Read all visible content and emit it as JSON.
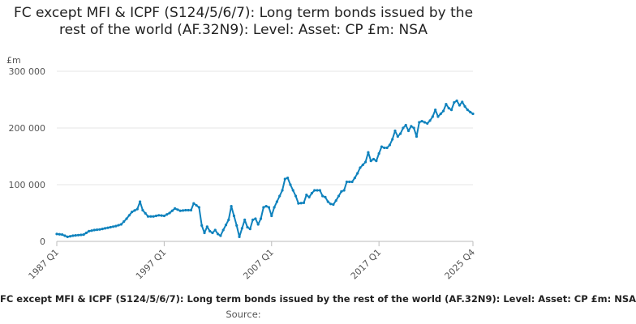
{
  "chart_data": {
    "type": "line",
    "title": "FC except MFI & ICPF (S124/5/6/7): Long term bonds issued by the rest of the world (AF.32N9): Level: Asset: CP £m: NSA",
    "ylabel": "£m",
    "xlabel": "",
    "ylim": [
      0,
      300000
    ],
    "yticks": [
      0,
      100000,
      200000,
      300000
    ],
    "ytick_labels": [
      "0",
      "100 000",
      "200 000",
      "300 000"
    ],
    "xtick_labels": [
      "1987 Q1",
      "1997 Q1",
      "2007 Q1",
      "2017 Q1",
      "2025 Q4"
    ],
    "xtick_indices": [
      0,
      40,
      80,
      120,
      155
    ],
    "grid": true,
    "legend": "bottom",
    "source_label": "Source:",
    "series": [
      {
        "name": "FC except MFI & ICPF (S124/5/6/7): Long term bonds issued by the rest of the world (AF.32N9): Level: Asset: CP £m: NSA",
        "color": "#0f82bd",
        "anchors": [
          [
            0,
            13000
          ],
          [
            2,
            12000
          ],
          [
            4,
            8000
          ],
          [
            6,
            10000
          ],
          [
            8,
            11000
          ],
          [
            10,
            12000
          ],
          [
            12,
            18000
          ],
          [
            14,
            20000
          ],
          [
            16,
            21000
          ],
          [
            18,
            23000
          ],
          [
            20,
            25000
          ],
          [
            22,
            27000
          ],
          [
            24,
            30000
          ],
          [
            26,
            40000
          ],
          [
            28,
            52000
          ],
          [
            30,
            57000
          ],
          [
            31,
            70000
          ],
          [
            32,
            55000
          ],
          [
            34,
            44000
          ],
          [
            36,
            44000
          ],
          [
            38,
            46000
          ],
          [
            40,
            45000
          ],
          [
            42,
            50000
          ],
          [
            44,
            58000
          ],
          [
            46,
            54000
          ],
          [
            48,
            55000
          ],
          [
            50,
            55000
          ],
          [
            51,
            67000
          ],
          [
            53,
            60000
          ],
          [
            54,
            28000
          ],
          [
            55,
            15000
          ],
          [
            56,
            26000
          ],
          [
            57,
            18000
          ],
          [
            58,
            15000
          ],
          [
            59,
            20000
          ],
          [
            60,
            13000
          ],
          [
            61,
            10000
          ],
          [
            62,
            20000
          ],
          [
            64,
            38000
          ],
          [
            65,
            62000
          ],
          [
            66,
            45000
          ],
          [
            67,
            28000
          ],
          [
            68,
            8000
          ],
          [
            70,
            38000
          ],
          [
            71,
            25000
          ],
          [
            72,
            22000
          ],
          [
            73,
            38000
          ],
          [
            74,
            40000
          ],
          [
            75,
            30000
          ],
          [
            76,
            40000
          ],
          [
            77,
            60000
          ],
          [
            78,
            62000
          ],
          [
            79,
            60000
          ],
          [
            80,
            45000
          ],
          [
            81,
            60000
          ],
          [
            82,
            70000
          ],
          [
            83,
            80000
          ],
          [
            84,
            90000
          ],
          [
            85,
            110000
          ],
          [
            86,
            112000
          ],
          [
            87,
            100000
          ],
          [
            89,
            80000
          ],
          [
            90,
            67000
          ],
          [
            92,
            68000
          ],
          [
            93,
            82000
          ],
          [
            94,
            78000
          ],
          [
            95,
            85000
          ],
          [
            96,
            90000
          ],
          [
            98,
            90000
          ],
          [
            99,
            80000
          ],
          [
            100,
            78000
          ],
          [
            101,
            70000
          ],
          [
            102,
            66000
          ],
          [
            103,
            65000
          ],
          [
            104,
            72000
          ],
          [
            105,
            80000
          ],
          [
            106,
            88000
          ],
          [
            107,
            90000
          ],
          [
            108,
            105000
          ],
          [
            110,
            105000
          ],
          [
            111,
            112000
          ],
          [
            112,
            120000
          ],
          [
            113,
            130000
          ],
          [
            114,
            135000
          ],
          [
            115,
            140000
          ],
          [
            116,
            157000
          ],
          [
            117,
            142000
          ],
          [
            118,
            145000
          ],
          [
            119,
            142000
          ],
          [
            120,
            155000
          ],
          [
            121,
            167000
          ],
          [
            122,
            165000
          ],
          [
            123,
            165000
          ],
          [
            124,
            170000
          ],
          [
            125,
            180000
          ],
          [
            126,
            195000
          ],
          [
            127,
            185000
          ],
          [
            128,
            190000
          ],
          [
            129,
            200000
          ],
          [
            130,
            205000
          ],
          [
            131,
            195000
          ],
          [
            132,
            203000
          ],
          [
            133,
            200000
          ],
          [
            134,
            185000
          ],
          [
            135,
            210000
          ],
          [
            136,
            212000
          ],
          [
            137,
            210000
          ],
          [
            138,
            208000
          ],
          [
            139,
            213000
          ],
          [
            140,
            220000
          ],
          [
            141,
            232000
          ],
          [
            142,
            220000
          ],
          [
            143,
            225000
          ],
          [
            144,
            230000
          ],
          [
            145,
            242000
          ],
          [
            146,
            235000
          ],
          [
            147,
            232000
          ],
          [
            148,
            245000
          ],
          [
            149,
            248000
          ],
          [
            150,
            240000
          ],
          [
            151,
            246000
          ],
          [
            152,
            238000
          ],
          [
            153,
            232000
          ],
          [
            154,
            228000
          ],
          [
            155,
            225000
          ]
        ]
      }
    ]
  }
}
